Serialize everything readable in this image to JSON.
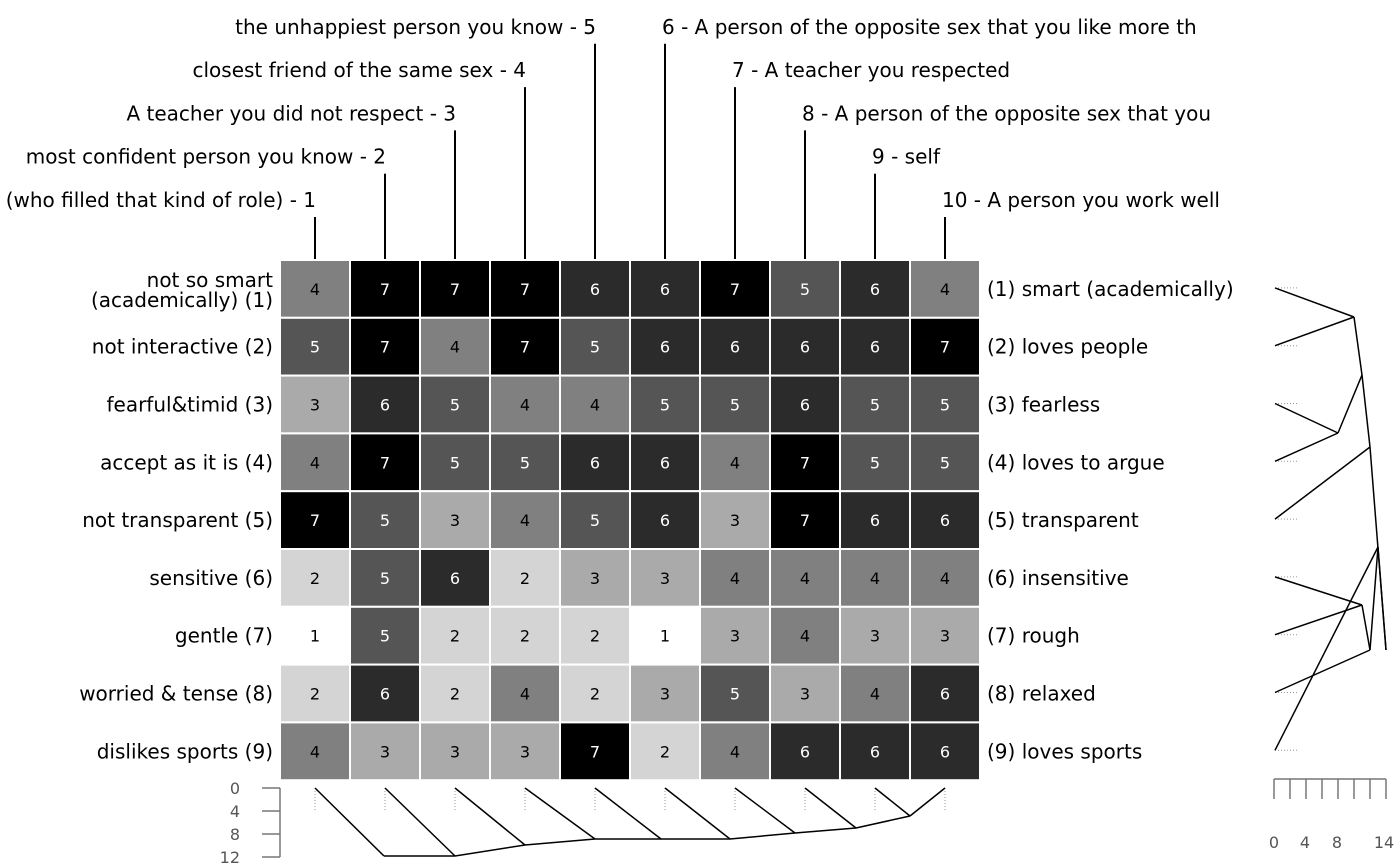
{
  "chart_data": {
    "type": "heatmap",
    "title": "",
    "elements": [
      "(who filled that kind of role) - 1",
      "most confident person you know - 2",
      "A teacher you did not respect - 3",
      "closest friend of the same sex - 4",
      "the unhappiest person you know - 5",
      "6 - A person of the opposite sex that you like more th",
      "7 - A teacher you respected",
      "8 - A person of the opposite sex that you",
      "9 - self",
      "10 - A person you work well"
    ],
    "left_poles": [
      "not so smart|(academically) (1)",
      "not interactive (2)",
      "fearful&timid (3)",
      "accept as it is (4)",
      "not transparent (5)",
      "sensitive (6)",
      "gentle (7)",
      "worried & tense (8)",
      "dislikes sports (9)"
    ],
    "right_poles": [
      "(1) smart (academically)",
      "(2) loves people",
      "(3) fearless",
      "(4) loves to argue",
      "(5) transparent",
      "(6) insensitive",
      "(7) rough",
      "(8) relaxed",
      "(9) loves sports"
    ],
    "values": [
      [
        4,
        7,
        7,
        7,
        6,
        6,
        7,
        5,
        6,
        4
      ],
      [
        5,
        7,
        4,
        7,
        5,
        6,
        6,
        6,
        6,
        7
      ],
      [
        3,
        6,
        5,
        4,
        4,
        5,
        5,
        6,
        5,
        5
      ],
      [
        4,
        7,
        5,
        5,
        6,
        6,
        4,
        7,
        5,
        5
      ],
      [
        7,
        5,
        3,
        4,
        5,
        6,
        3,
        7,
        6,
        6
      ],
      [
        2,
        5,
        6,
        2,
        3,
        3,
        4,
        4,
        4,
        4
      ],
      [
        1,
        5,
        2,
        2,
        2,
        1,
        3,
        4,
        3,
        3
      ],
      [
        2,
        6,
        2,
        4,
        2,
        3,
        5,
        3,
        4,
        6
      ],
      [
        4,
        3,
        3,
        3,
        7,
        2,
        4,
        6,
        6,
        6
      ]
    ],
    "scale": [
      1,
      7
    ],
    "colors": {
      "1": "#ffffff",
      "2": "#d4d4d4",
      "3": "#aaaaaa",
      "4": "#808080",
      "5": "#555555",
      "6": "#2b2b2b",
      "7": "#000000",
      "grid": "#ffffff",
      "text_dark": "#000000",
      "text_light": "#ffffff",
      "axis": "#777777"
    },
    "element_dendrogram_axis": {
      "ticks": [
        "0",
        "4",
        "8",
        "12"
      ],
      "range": [
        0,
        12
      ]
    },
    "construct_dendrogram_axis": {
      "ticks": [
        "0",
        "4",
        "8",
        "14"
      ],
      "range": [
        0,
        14
      ]
    }
  }
}
